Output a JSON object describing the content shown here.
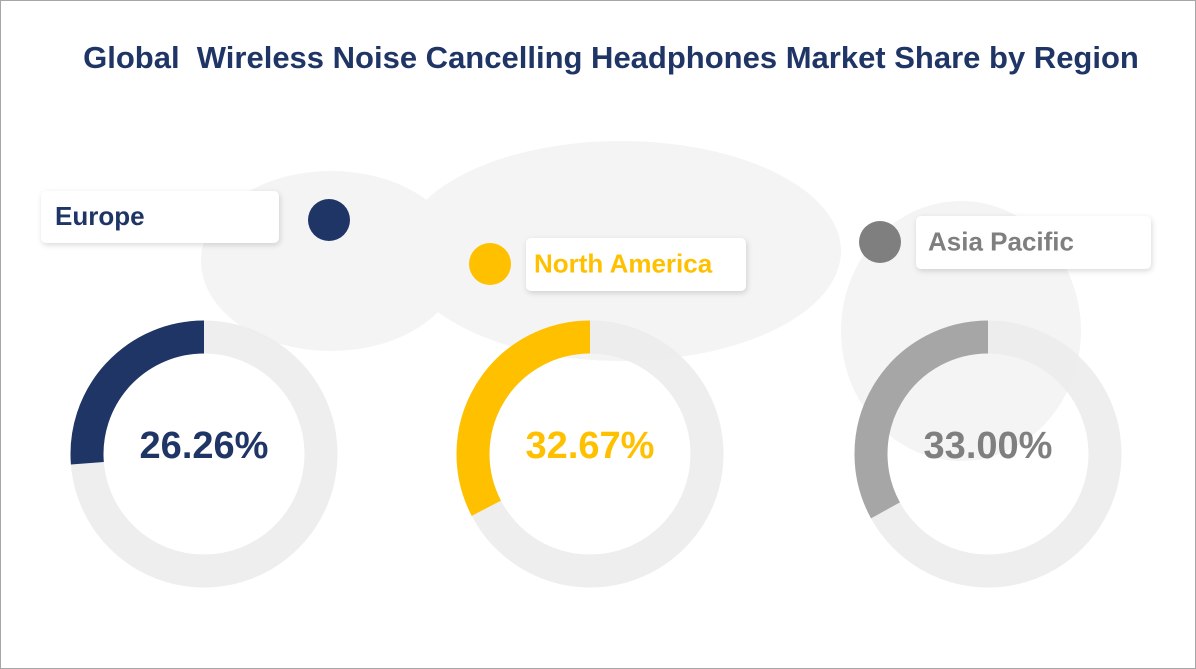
{
  "title": "Global  Wireless Noise Cancelling Headphones Market Share by Region",
  "chart_data": [
    {
      "type": "donut",
      "categories": [
        "Europe"
      ],
      "values": [
        26.26
      ],
      "value_labels": [
        "26.26%"
      ],
      "color": "#1f3566"
    },
    {
      "type": "donut",
      "categories": [
        "North America"
      ],
      "values": [
        32.67
      ],
      "value_labels": [
        "32.67%"
      ],
      "color": "#ffc000"
    },
    {
      "type": "donut",
      "categories": [
        "Asia Pacific"
      ],
      "values": [
        33.0
      ],
      "value_labels": [
        "33.00%"
      ],
      "color": "#a6a6a6"
    }
  ]
}
